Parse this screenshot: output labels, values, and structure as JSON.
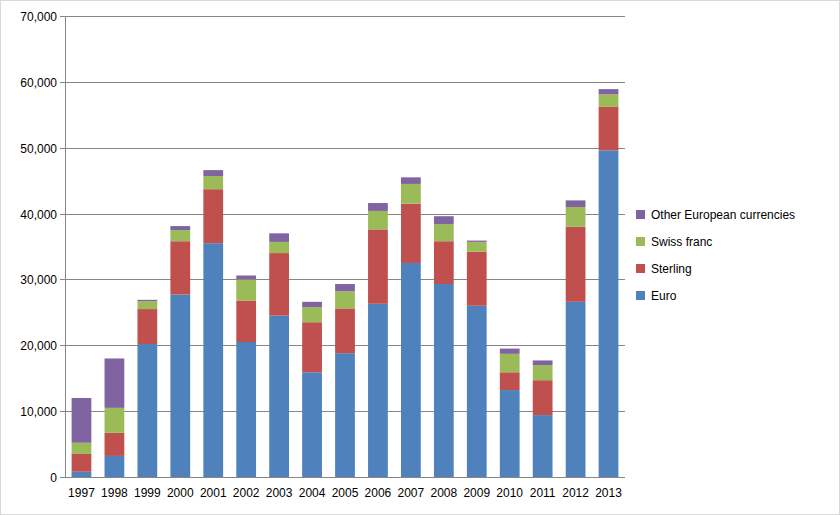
{
  "chart_data": {
    "type": "bar",
    "stacked": true,
    "grid": true,
    "legend": "right",
    "categories": [
      "1997",
      "1998",
      "1999",
      "2000",
      "2001",
      "2002",
      "2003",
      "2004",
      "2005",
      "2006",
      "2007",
      "2008",
      "2009",
      "2010",
      "2011",
      "2012",
      "2013"
    ],
    "ylim": [
      0,
      70000
    ],
    "yticks": [
      0,
      {
        "value": 10000,
        "label": "10,000"
      },
      {
        "value": 20000,
        "label": "20,000"
      },
      {
        "value": 30000,
        "label": "30,000"
      },
      {
        "value": 40000,
        "label": "40,000"
      },
      {
        "value": 50000,
        "label": "50,000"
      },
      {
        "value": 60000,
        "label": "60,000"
      },
      {
        "value": 70000,
        "label": "70,000"
      }
    ],
    "series": [
      {
        "name": "Euro",
        "color": "#4f81bd",
        "values": [
          800,
          3200,
          20200,
          27700,
          35500,
          20500,
          24500,
          15900,
          18800,
          26300,
          32500,
          29300,
          26000,
          13200,
          9400,
          26600,
          49600
        ]
      },
      {
        "name": "Sterling",
        "color": "#c0504d",
        "values": [
          2700,
          3500,
          5300,
          8100,
          8200,
          6300,
          9500,
          7600,
          6800,
          11300,
          9000,
          6500,
          8200,
          2700,
          5300,
          11400,
          6600
        ]
      },
      {
        "name": "Swiss franc",
        "color": "#9bbb59",
        "values": [
          1700,
          3800,
          1200,
          1700,
          2000,
          3200,
          1700,
          2300,
          2600,
          2800,
          3000,
          2600,
          1500,
          2800,
          2300,
          3000,
          1900
        ]
      },
      {
        "name": "Other European currencies",
        "color": "#8064a2",
        "values": [
          6800,
          7500,
          200,
          600,
          900,
          600,
          1300,
          800,
          1100,
          1200,
          1000,
          1200,
          200,
          800,
          700,
          1000,
          800
        ]
      }
    ]
  }
}
